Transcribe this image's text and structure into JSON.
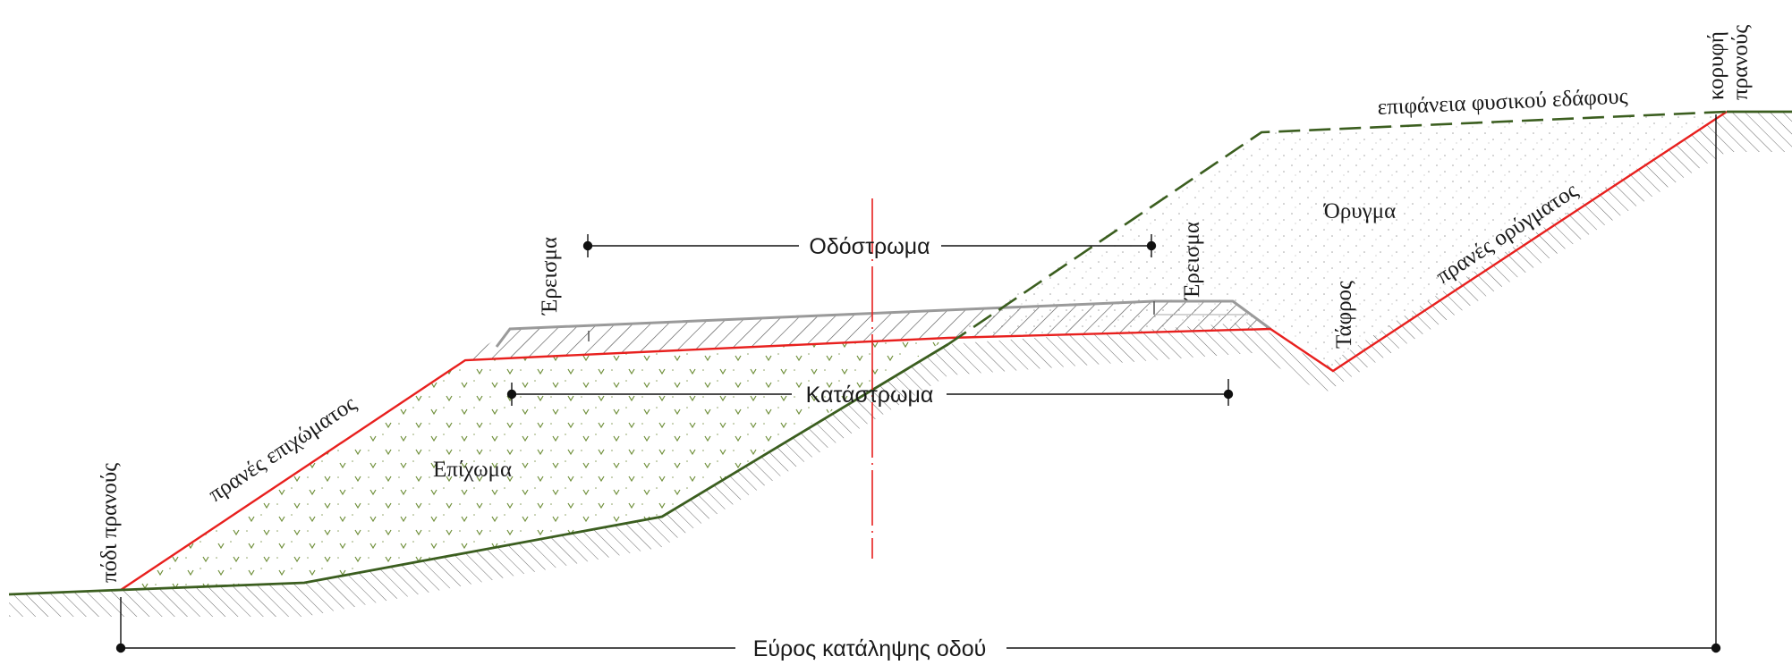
{
  "labels": {
    "roadway": "Οδόστρωμα",
    "shoulder_left": "Έρεισμα",
    "shoulder_right": "Έρεισμα",
    "formation": "Κατάστρωμα",
    "embankment": "Επίχωμα",
    "cut": "Όρυγμα",
    "ditch": "Τάφρος",
    "fill_slope": "πρανές επιχώματος",
    "cut_slope": "πρανές ορύγματος",
    "natural_ground": "επιφάνεια φυσικού εδάφους",
    "slope_toe": "πόδι πρανούς",
    "slope_crest_line1": "κορυφή",
    "slope_crest_line2": "πρανούς",
    "right_of_way": "Εύρος κατάληψης οδού"
  },
  "colors": {
    "formation_line": "#e8201e",
    "centerline": "#e8201e",
    "ground_line": "#3b5e1f",
    "ground_dashed": "#3b5e1f",
    "pavement_edge": "#9a9a9a",
    "hatch": "#4a4a4a",
    "dimension": "#111111",
    "fill_tick": "#6f8f3a"
  }
}
